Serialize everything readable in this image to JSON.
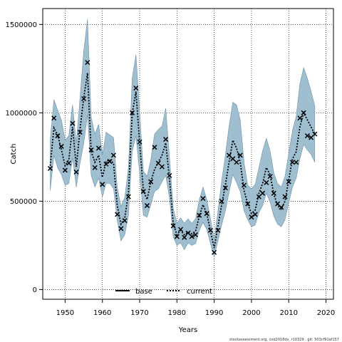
{
  "chart_data": {
    "type": "line",
    "xlabel": "Years",
    "ylabel": "Catch",
    "xlim": [
      1944,
      2022
    ],
    "ylim": [
      -55000,
      1590000
    ],
    "xticks": [
      1950,
      1960,
      1970,
      1980,
      1990,
      2000,
      2010,
      2020
    ],
    "yticks": [
      0,
      500000,
      1000000,
      1500000
    ],
    "grid": true,
    "legend_placement": "bottom-center",
    "legend": [
      {
        "label": "base",
        "style": "solid"
      },
      {
        "label": "current",
        "style": "dotted"
      }
    ],
    "colors": {
      "band": "#9fbfd1",
      "band_edge": "#6f93aa",
      "line": "#000000"
    },
    "footer": "stockassessment.org, cod2018dv, r10329 , git: 503cf91af157",
    "x": [
      1946,
      1947,
      1948,
      1949,
      1950,
      1951,
      1952,
      1953,
      1954,
      1955,
      1956,
      1957,
      1958,
      1959,
      1960,
      1961,
      1962,
      1963,
      1964,
      1965,
      1966,
      1967,
      1968,
      1969,
      1970,
      1971,
      1972,
      1973,
      1974,
      1975,
      1976,
      1977,
      1978,
      1979,
      1980,
      1981,
      1982,
      1983,
      1984,
      1985,
      1986,
      1987,
      1988,
      1989,
      1990,
      1991,
      1992,
      1993,
      1994,
      1995,
      1996,
      1997,
      1998,
      1999,
      2000,
      2001,
      2002,
      2003,
      2004,
      2005,
      2006,
      2007,
      2008,
      2009,
      2010,
      2011,
      2012,
      2013,
      2014,
      2015,
      2016,
      2017
    ],
    "observed": [
      685000,
      970000,
      870000,
      810000,
      675000,
      715000,
      940000,
      665000,
      890000,
      1080000,
      1285000,
      790000,
      690000,
      800000,
      595000,
      710000,
      725000,
      760000,
      425000,
      345000,
      390000,
      525000,
      1000000,
      1140000,
      835000,
      555000,
      475000,
      610000,
      805000,
      715000,
      695000,
      850000,
      645000,
      360000,
      300000,
      340000,
      295000,
      320000,
      300000,
      310000,
      420000,
      515000,
      430000,
      335000,
      210000,
      335000,
      500000,
      575000,
      760000,
      740000,
      720000,
      760000,
      590000,
      485000,
      410000,
      425000,
      525000,
      545000,
      605000,
      640000,
      545000,
      485000,
      465000,
      525000,
      610000,
      720000,
      720000,
      970000,
      1000000,
      870000,
      860000,
      880000
    ],
    "current": [
      700000,
      915000,
      875000,
      790000,
      700000,
      735000,
      920000,
      695000,
      905000,
      1085000,
      1225000,
      780000,
      720000,
      760000,
      635000,
      725000,
      735000,
      715000,
      475000,
      370000,
      405000,
      545000,
      995000,
      1120000,
      830000,
      560000,
      510000,
      610000,
      680000,
      720000,
      760000,
      830000,
      630000,
      375000,
      310000,
      335000,
      310000,
      325000,
      315000,
      330000,
      415000,
      480000,
      430000,
      330000,
      235000,
      355000,
      480000,
      590000,
      720000,
      845000,
      800000,
      720000,
      560000,
      485000,
      430000,
      450000,
      545000,
      600000,
      690000,
      650000,
      540000,
      475000,
      455000,
      500000,
      620000,
      740000,
      780000,
      920000,
      1000000,
      960000,
      920000,
      880000
    ],
    "lower": [
      560000,
      760000,
      690000,
      650000,
      590000,
      600000,
      745000,
      580000,
      715000,
      825000,
      990000,
      645000,
      580000,
      630000,
      525000,
      600000,
      600000,
      570000,
      390000,
      275000,
      310000,
      420000,
      780000,
      870000,
      660000,
      420000,
      410000,
      480000,
      555000,
      570000,
      610000,
      645000,
      520000,
      300000,
      250000,
      265000,
      225000,
      265000,
      250000,
      260000,
      335000,
      380000,
      340000,
      260000,
      185000,
      275000,
      365000,
      445000,
      550000,
      650000,
      605000,
      555000,
      445000,
      395000,
      355000,
      365000,
      435000,
      475000,
      545000,
      495000,
      415000,
      370000,
      355000,
      395000,
      490000,
      580000,
      630000,
      740000,
      820000,
      790000,
      765000,
      720000
    ],
    "upper": [
      850000,
      1075000,
      1015000,
      960000,
      845000,
      870000,
      1045000,
      830000,
      1085000,
      1350000,
      1530000,
      975000,
      880000,
      935000,
      760000,
      890000,
      875000,
      860000,
      575000,
      470000,
      520000,
      690000,
      1195000,
      1330000,
      1010000,
      670000,
      640000,
      735000,
      880000,
      905000,
      925000,
      1025000,
      755000,
      460000,
      375000,
      405000,
      375000,
      400000,
      375000,
      400000,
      510000,
      580000,
      510000,
      400000,
      285000,
      440000,
      615000,
      760000,
      925000,
      1060000,
      1045000,
      960000,
      720000,
      590000,
      570000,
      595000,
      690000,
      785000,
      855000,
      785000,
      660000,
      600000,
      580000,
      640000,
      770000,
      900000,
      980000,
      1165000,
      1255000,
      1195000,
      1120000,
      1040000
    ]
  }
}
